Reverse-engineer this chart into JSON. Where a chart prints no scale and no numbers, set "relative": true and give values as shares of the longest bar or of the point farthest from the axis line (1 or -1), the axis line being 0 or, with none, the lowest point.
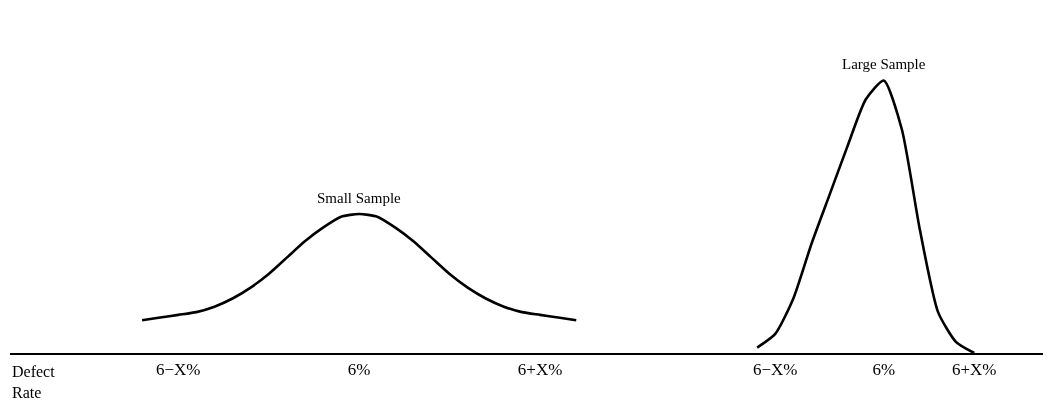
{
  "chart_data": {
    "type": "line",
    "relative": true,
    "xlabel": "Defect Rate",
    "categories": [
      null,
      null,
      "6−X%",
      null,
      null,
      null,
      null,
      null,
      null,
      null,
      null,
      null,
      "6%",
      null,
      null,
      null,
      null,
      null,
      null,
      null,
      null,
      null,
      "6+X%",
      null,
      null,
      null,
      null,
      null,
      null,
      null,
      null,
      null,
      null,
      null,
      null,
      "6−X%",
      null,
      null,
      null,
      null,
      null,
      "6%",
      null,
      null,
      null,
      null,
      "6+X%"
    ],
    "series": [
      {
        "name": "Small Sample",
        "color": "#000000",
        "values": [
          0.12,
          0.13,
          0.14,
          0.15,
          0.17,
          0.2,
          0.24,
          0.29,
          0.35,
          0.41,
          0.46,
          0.5,
          0.51,
          0.5,
          0.46,
          0.41,
          0.35,
          0.29,
          0.24,
          0.2,
          0.17,
          0.15,
          0.14,
          0.13,
          0.12,
          null,
          null,
          null,
          null,
          null,
          null,
          null,
          null,
          null,
          null,
          null,
          null,
          null,
          null,
          null,
          null,
          null,
          null,
          null,
          null,
          null,
          null
        ]
      },
      {
        "name": "Large Sample",
        "color": "#000000",
        "values": [
          null,
          null,
          null,
          null,
          null,
          null,
          null,
          null,
          null,
          null,
          null,
          null,
          null,
          null,
          null,
          null,
          null,
          null,
          null,
          null,
          null,
          null,
          null,
          null,
          null,
          null,
          null,
          null,
          null,
          null,
          null,
          null,
          null,
          null,
          0.02,
          0.07,
          0.2,
          0.4,
          0.58,
          0.76,
          0.93,
          1.0,
          0.82,
          0.45,
          0.15,
          0.04,
          0.0
        ]
      }
    ],
    "legend": false,
    "marker": "none",
    "line_style": "solid"
  }
}
